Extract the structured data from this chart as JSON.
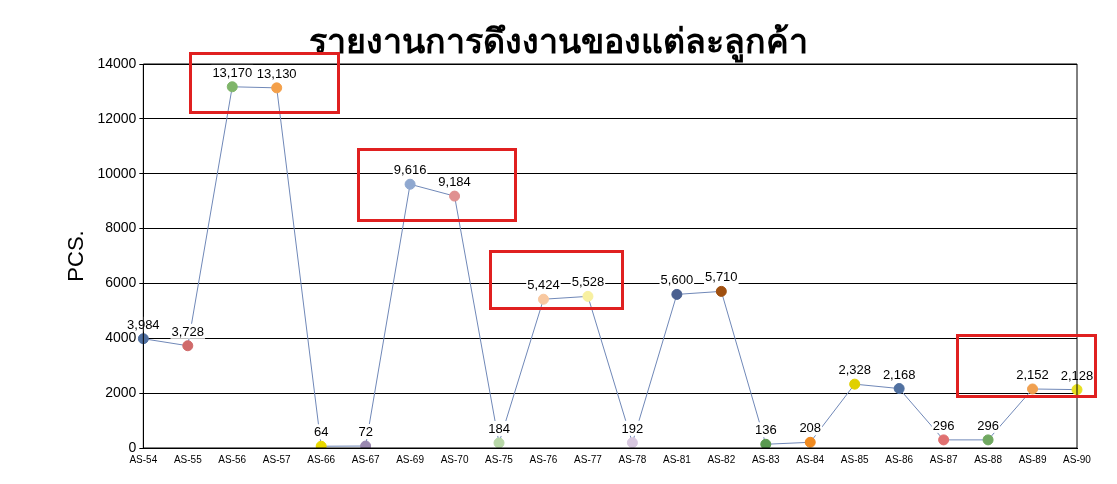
{
  "chart_data": {
    "type": "line",
    "title": "รายงานการดึงงานของแต่ละลูกค้า",
    "ylabel": "PCS.",
    "categories": [
      "AS-54",
      "AS-55",
      "AS-56",
      "AS-57",
      "AS-66",
      "AS-67",
      "AS-69",
      "AS-70",
      "AS-75",
      "AS-76",
      "AS-77",
      "AS-78",
      "AS-81",
      "AS-82",
      "AS-83",
      "AS-84",
      "AS-85",
      "AS-86",
      "AS-87",
      "AS-88",
      "AS-89",
      "AS-90"
    ],
    "series": [
      {
        "color": "#7088b8",
        "values": [
          3984,
          3728,
          13170,
          13130,
          64,
          72,
          9616,
          9184,
          184,
          5424,
          5528,
          192,
          5600,
          5710,
          136,
          208,
          2328,
          2168,
          296,
          296,
          2152,
          2128
        ],
        "value_labels": [
          "3,984",
          "3,728",
          "13,170",
          "13,130",
          "64",
          "72",
          "9,616",
          "9,184",
          "184",
          "5,424",
          "5,528",
          "192",
          "5,600",
          "5,710",
          "136",
          "208",
          "2,328",
          "2,168",
          "296",
          "296",
          "2,152",
          "2,128"
        ],
        "colors": [
          "#4f6fa0",
          "#d06a6a",
          "#7fb56a",
          "#f4a04a",
          "#e8d800",
          "#9a88b0",
          "#8fa8d0",
          "#e09090",
          "#b8d8a8",
          "#f8c8a0",
          "#f8f0a0",
          "#d8c8e0",
          "#4a6090",
          "#a05010",
          "#5a9a50",
          "#f08a20",
          "#e0d000",
          "#5070a0",
          "#e07070",
          "#70a860",
          "#f0a050",
          "#e8e020"
        ]
      }
    ],
    "ylim": [
      0,
      14000
    ],
    "yticks": [
      0,
      2000,
      4000,
      6000,
      8000,
      10000,
      12000,
      14000
    ],
    "grid": "y",
    "legend": false,
    "marker": "circle",
    "line_style": "solid"
  }
}
